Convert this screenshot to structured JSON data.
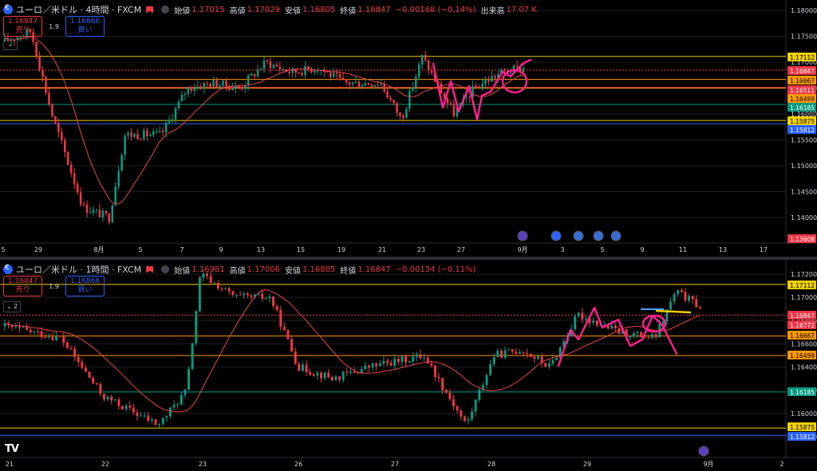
{
  "colors": {
    "up": "#089981",
    "down": "#f23645",
    "ma": "#e8474e",
    "draw": "#ff1f8f",
    "grid": "#1c1f26",
    "text": "#d1d4dc",
    "blue_line": "#2962ff"
  },
  "top": {
    "symbol": "ユーロ／米ドル · 4時間 · FXCM",
    "labels": {
      "open": "始値",
      "high": "高値",
      "low": "安値",
      "close": "終値",
      "volume": "出来高"
    },
    "open": "1.17015",
    "high": "1.17029",
    "low": "1.16805",
    "close": "1.16847",
    "change": "−0.00168 (−0.14%)",
    "volume": "17.07 K",
    "sell_price": "1.16847",
    "sell_label": "売り",
    "spread": "1.9",
    "buy_price": "1.16866",
    "buy_label": "買い",
    "collapse_icon": "chevron-down-icon",
    "price_ticks": [
      "1.18000",
      "1.17500",
      "1.17000",
      "1.16500",
      "1.16000",
      "1.15500",
      "1.15000",
      "1.14500",
      "1.14000"
    ],
    "time_ticks": [
      "5",
      "29",
      "8月",
      "5",
      "7",
      "9",
      "13",
      "15",
      "19",
      "21",
      "23",
      "27",
      "9月",
      "3",
      "5",
      "9",
      "11",
      "13",
      "17"
    ],
    "price_tags": [
      {
        "text": "1.17112",
        "bg": "#f0d000",
        "fg": "#000"
      },
      {
        "text": "EURUSD",
        "bg": "#f23645",
        "fg": "#fff"
      },
      {
        "text": "1.16847",
        "bg": "#f23645",
        "fg": "#fff"
      },
      {
        "text": "1.16667",
        "bg": "#ff9800",
        "fg": "#000"
      },
      {
        "text": "1.16511",
        "bg": "#f23645",
        "fg": "#fff"
      },
      {
        "text": "1.16499",
        "bg": "#ff9800",
        "fg": "#000"
      },
      {
        "text": "1.16185",
        "bg": "#089981",
        "fg": "#fff"
      },
      {
        "text": "1.15875",
        "bg": "#f0d000",
        "fg": "#000"
      },
      {
        "text": "1.15812",
        "bg": "#2962ff",
        "fg": "#fff"
      },
      {
        "text": "1.13608",
        "bg": "#f23645",
        "fg": "#fff"
      }
    ]
  },
  "bottom": {
    "symbol": "ユーロ／米ドル · 1時間 · FXCM",
    "labels": {
      "open": "始値",
      "high": "高値",
      "low": "安値",
      "close": "終値"
    },
    "open": "1.16981",
    "high": "1.17006",
    "low": "1.16805",
    "close": "1.16847",
    "change": "−0.00134 (−0.11%)",
    "sell_price": "1.16847",
    "sell_label": "売り",
    "spread": "1.9",
    "buy_price": "1.16866",
    "buy_label": "買い",
    "indicator_count": "2",
    "price_ticks": [
      "1.17200",
      "1.17000",
      "1.16800",
      "1.16600",
      "1.16400",
      "1.16200",
      "1.16000",
      "1.15800"
    ],
    "time_ticks": [
      "21",
      "22",
      "23",
      "26",
      "27",
      "28",
      "29",
      "9月",
      "2"
    ],
    "price_tags": [
      {
        "text": "1.17112",
        "bg": "#f0d000",
        "fg": "#000"
      },
      {
        "text": "EURUSD",
        "bg": "#f23645",
        "fg": "#fff"
      },
      {
        "text": "1.16847",
        "bg": "#f23645",
        "fg": "#fff"
      },
      {
        "text": "1.16772",
        "bg": "#f23645",
        "fg": "#fff"
      },
      {
        "text": "1.16667",
        "bg": "#ff9800",
        "fg": "#000"
      },
      {
        "text": "1.16499",
        "bg": "#ff9800",
        "fg": "#000"
      },
      {
        "text": "1.16185",
        "bg": "#089981",
        "fg": "#fff"
      },
      {
        "text": "1.15875",
        "bg": "#f0d000",
        "fg": "#000"
      },
      {
        "text": "1.15812",
        "bg": "#2962ff",
        "fg": "#fff"
      }
    ]
  },
  "logo_text": "TV"
}
